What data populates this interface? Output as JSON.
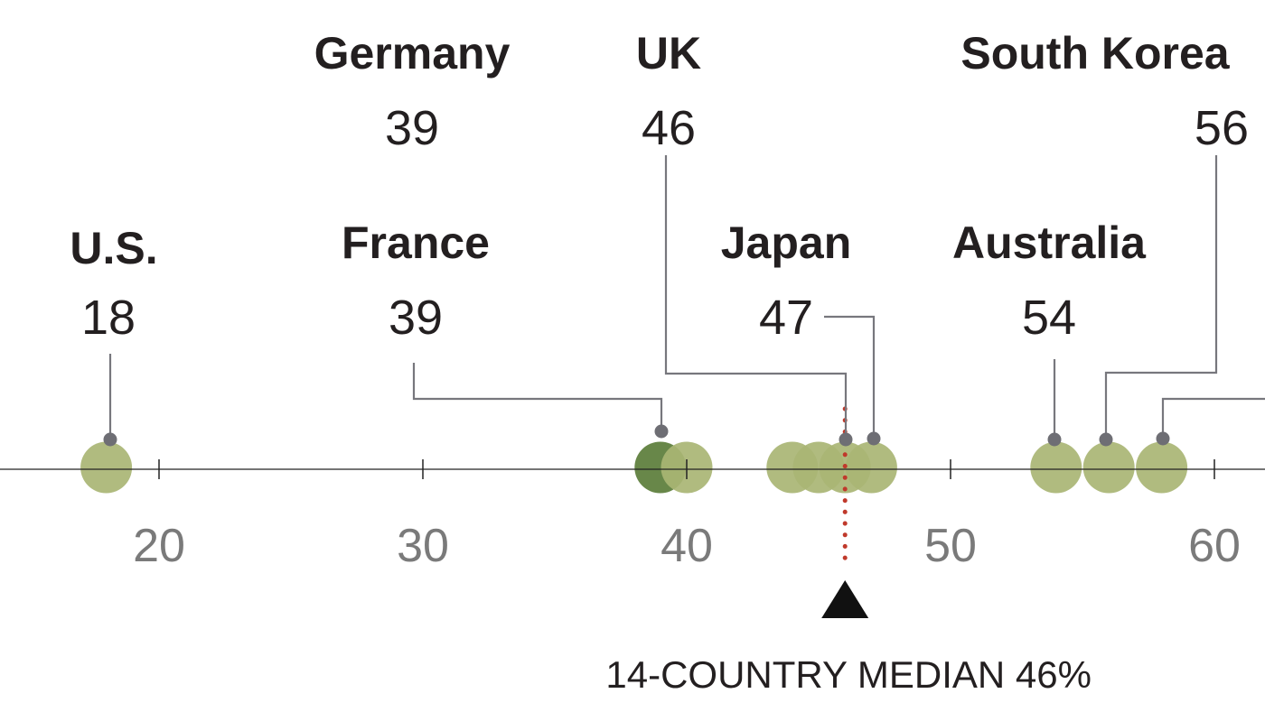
{
  "chart_data": {
    "type": "scatter",
    "xlim": [
      16.5,
      64
    ],
    "ticks": [
      {
        "value": 20,
        "label": "20"
      },
      {
        "value": 30,
        "label": "30"
      },
      {
        "value": 40,
        "label": "40"
      },
      {
        "value": 50,
        "label": "50"
      },
      {
        "value": 60,
        "label": "60"
      }
    ],
    "points": [
      {
        "value": 18
      },
      {
        "value": 39
      },
      {
        "value": 40
      },
      {
        "value": 44
      },
      {
        "value": 45
      },
      {
        "value": 46
      },
      {
        "value": 47
      },
      {
        "value": 54
      },
      {
        "value": 56
      },
      {
        "value": 58
      }
    ],
    "labeled_countries": [
      {
        "name": "U.S.",
        "value": 18,
        "display": "18"
      },
      {
        "name": "France",
        "value": 39,
        "display": "39"
      },
      {
        "name": "Germany",
        "value": 39,
        "display": "39"
      },
      {
        "name": "UK",
        "value": 46,
        "display": "46"
      },
      {
        "name": "Japan",
        "value": 47,
        "display": "47"
      },
      {
        "name": "Australia",
        "value": 54,
        "display": "54"
      },
      {
        "name": "South Korea",
        "value": 56,
        "display": "56"
      }
    ],
    "median": {
      "value": 46,
      "label": "14-COUNTRY MEDIAN 46%"
    },
    "colors": {
      "point": "#a9b574",
      "highlight_point": "#5b7d3a",
      "median": "#c0392b",
      "leader": "#77777d"
    }
  }
}
